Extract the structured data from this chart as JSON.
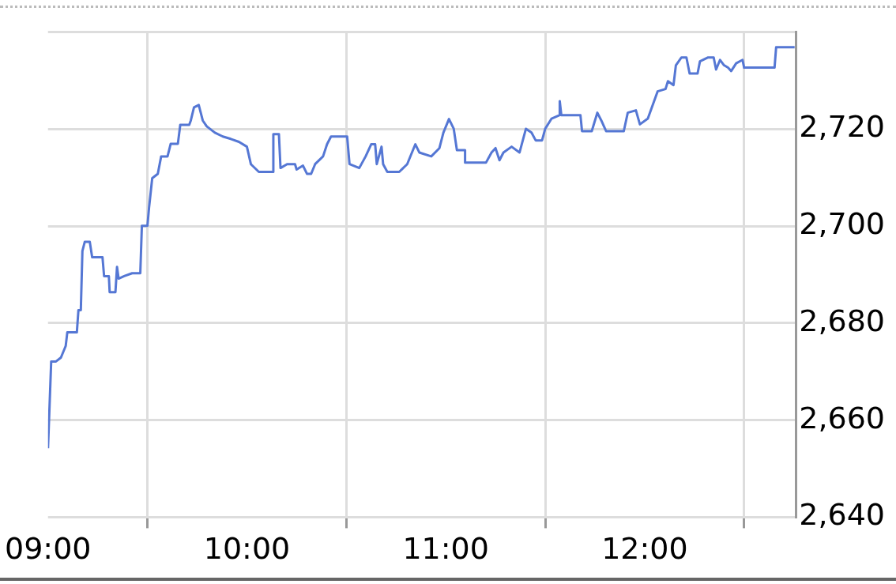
{
  "chart_data": {
    "type": "line",
    "x": [
      9,
      9.016,
      9.04,
      9.065,
      9.089,
      9.097,
      9.145,
      9.153,
      9.165,
      9.173,
      9.185,
      9.21,
      9.222,
      9.274,
      9.282,
      9.306,
      9.31,
      9.339,
      9.347,
      9.355,
      9.383,
      9.423,
      9.464,
      9.472,
      9.5,
      9.508,
      9.524,
      9.552,
      9.569,
      9.601,
      9.617,
      9.653,
      9.665,
      9.71,
      9.718,
      9.734,
      9.758,
      9.778,
      9.798,
      9.839,
      9.879,
      9.919,
      9.96,
      10,
      10.02,
      10.06,
      10.133,
      10.133,
      10.161,
      10.169,
      10.202,
      10.242,
      10.25,
      10.282,
      10.302,
      10.323,
      10.343,
      10.383,
      10.403,
      10.423,
      10.504,
      10.516,
      10.565,
      10.597,
      10.625,
      10.645,
      10.653,
      10.677,
      10.685,
      10.706,
      10.766,
      10.806,
      10.847,
      10.867,
      10.927,
      10.968,
      10.988,
      11.016,
      11.04,
      11.056,
      11.097,
      11.097,
      11.202,
      11.23,
      11.25,
      11.27,
      11.29,
      11.331,
      11.371,
      11.403,
      11.431,
      11.452,
      11.484,
      11.5,
      11.532,
      11.573,
      11.573,
      11.581,
      11.677,
      11.685,
      11.734,
      11.762,
      11.782,
      11.806,
      11.895,
      11.915,
      11.956,
      11.976,
      12.016,
      12.036,
      12.065,
      12.105,
      12.117,
      12.145,
      12.157,
      12.185,
      12.21,
      12.226,
      12.266,
      12.278,
      12.319,
      12.347,
      12.359,
      12.379,
      12.399,
      12.419,
      12.435,
      12.46,
      12.492,
      12.5,
      12.653,
      12.661,
      12.754
    ],
    "series": [
      {
        "color": "#5577d4",
        "values": [
          2654.2,
          2672.1,
          2672.1,
          2672.9,
          2675.3,
          2678.1,
          2678.1,
          2682.7,
          2682.7,
          2694.9,
          2696.8,
          2696.8,
          2693.6,
          2693.6,
          2689.7,
          2689.7,
          2686.4,
          2686.4,
          2691.6,
          2689.2,
          2689.7,
          2690.3,
          2690.3,
          2700.1,
          2700.1,
          2703.8,
          2709.9,
          2710.8,
          2714.4,
          2714.4,
          2717,
          2717,
          2720.9,
          2720.9,
          2721.8,
          2724.5,
          2725,
          2721.8,
          2720.6,
          2719.3,
          2718.5,
          2718,
          2717.4,
          2716.4,
          2712.8,
          2711.2,
          2711.2,
          2719,
          2719,
          2712,
          2712.8,
          2712.8,
          2711.7,
          2712.5,
          2710.8,
          2710.8,
          2712.8,
          2714.4,
          2716.9,
          2718.5,
          2718.5,
          2712.8,
          2712,
          2714.4,
          2716.9,
          2716.9,
          2712.8,
          2716.4,
          2712.8,
          2711.2,
          2711.2,
          2712.8,
          2716.9,
          2715.2,
          2714.4,
          2716.1,
          2719.3,
          2722.1,
          2720.1,
          2715.7,
          2715.7,
          2713.1,
          2713.1,
          2715.2,
          2716.1,
          2713.6,
          2715.2,
          2716.4,
          2715.2,
          2720.1,
          2719.3,
          2717.7,
          2717.7,
          2720.1,
          2722.2,
          2722.9,
          2725.8,
          2722.9,
          2722.9,
          2719.6,
          2719.6,
          2723.4,
          2721.8,
          2719.6,
          2719.6,
          2723.4,
          2723.9,
          2721,
          2722.2,
          2724.5,
          2727.8,
          2728.3,
          2729.9,
          2729.1,
          2733.2,
          2734.8,
          2734.8,
          2731.5,
          2731.5,
          2734,
          2734.8,
          2734.8,
          2732.3,
          2734.3,
          2733.2,
          2732.7,
          2732,
          2733.6,
          2734.3,
          2732.7,
          2732.7,
          2736.9,
          2736.9
        ]
      }
    ],
    "xlim": [
      9,
      12.76
    ],
    "xticks": [
      {
        "value": 9,
        "label": "09:00"
      },
      {
        "value": 9.5,
        "label": null
      },
      {
        "value": 10,
        "label": "10:00"
      },
      {
        "value": 10.5,
        "label": null
      },
      {
        "value": 11,
        "label": "11:00"
      },
      {
        "value": 11.5,
        "label": null
      },
      {
        "value": 12,
        "label": "12:00"
      },
      {
        "value": 12.5,
        "label": null
      }
    ],
    "ylim": [
      2640,
      2740
    ],
    "yticks": [
      {
        "value": 2640,
        "label": "2,640"
      },
      {
        "value": 2660,
        "label": "2,660"
      },
      {
        "value": 2680,
        "label": "2,680"
      },
      {
        "value": 2700,
        "label": "2,700"
      },
      {
        "value": 2720,
        "label": "2,720"
      },
      {
        "value": 2740,
        "label": null
      }
    ],
    "grid": true,
    "marker": "none",
    "line_style": "solid",
    "legend": false
  }
}
